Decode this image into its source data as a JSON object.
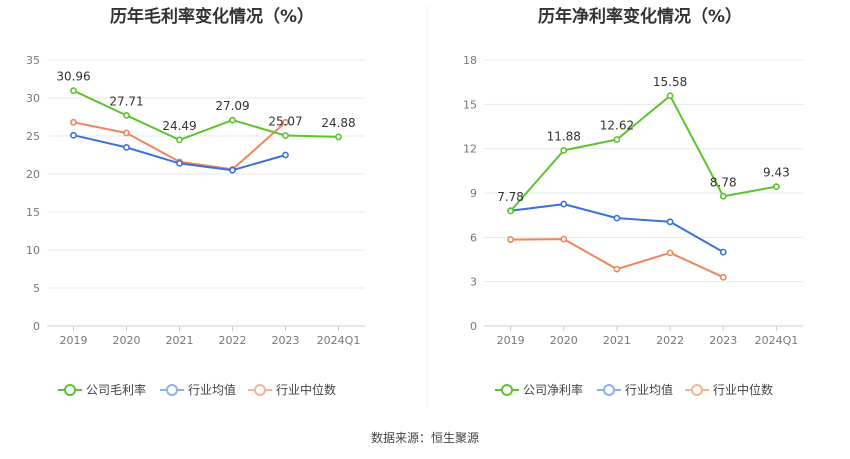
{
  "source": "数据来源：恒生聚源",
  "colors": {
    "company": "#5cc32e",
    "industry_avg": "#3a72d6",
    "industry_median": "#f0845c"
  },
  "chart_data": [
    {
      "type": "line",
      "title": "历年毛利率变化情况（%）",
      "categories": [
        "2019",
        "2020",
        "2021",
        "2022",
        "2023",
        "2024Q1"
      ],
      "ylim": [
        0,
        35
      ],
      "yticks": [
        "0",
        "5",
        "10",
        "15",
        "20",
        "25",
        "30",
        "35"
      ],
      "grid": true,
      "legend_position": "bottom",
      "series": [
        {
          "name": "公司毛利率",
          "color": "#5cc32e",
          "values": [
            30.96,
            27.71,
            24.49,
            27.09,
            25.07,
            24.88
          ],
          "labels": [
            "30.96",
            "27.71",
            "24.49",
            "27.09",
            "25.07",
            "24.88"
          ]
        },
        {
          "name": "行业均值",
          "color": "#3a72d6",
          "values": [
            25.1,
            23.5,
            21.4,
            20.5,
            22.5,
            null
          ]
        },
        {
          "name": "行业中位数",
          "color": "#f0845c",
          "values": [
            26.8,
            25.4,
            21.6,
            20.6,
            26.8,
            null
          ]
        }
      ]
    },
    {
      "type": "line",
      "title": "历年净利率变化情况（%）",
      "categories": [
        "2019",
        "2020",
        "2021",
        "2022",
        "2023",
        "2024Q1"
      ],
      "ylim": [
        0,
        18
      ],
      "yticks": [
        "0",
        "3",
        "6",
        "9",
        "12",
        "15",
        "18"
      ],
      "grid": true,
      "legend_position": "bottom",
      "series": [
        {
          "name": "公司净利率",
          "color": "#5cc32e",
          "values": [
            7.78,
            11.88,
            12.62,
            15.58,
            8.78,
            9.43
          ],
          "labels": [
            "7.78",
            "11.88",
            "12.62",
            "15.58",
            "8.78",
            "9.43"
          ]
        },
        {
          "name": "行业均值",
          "color": "#3a72d6",
          "values": [
            7.8,
            8.25,
            7.3,
            7.05,
            5.0,
            null
          ]
        },
        {
          "name": "行业中位数",
          "color": "#f0845c",
          "values": [
            5.85,
            5.88,
            3.85,
            4.95,
            3.3,
            null
          ]
        }
      ]
    }
  ]
}
